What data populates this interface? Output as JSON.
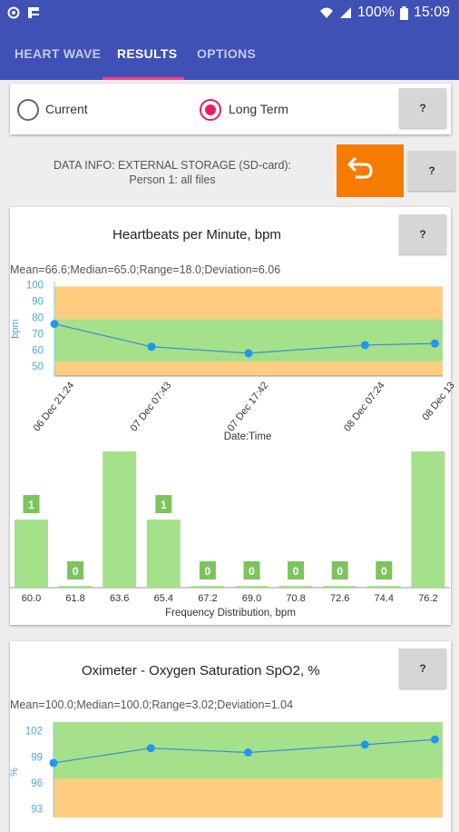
{
  "status": {
    "battery": "100%",
    "time": "15:09"
  },
  "tabs": [
    {
      "label": "HEART WAVE"
    },
    {
      "label": "RESULTS"
    },
    {
      "label": "OPTIONS"
    }
  ],
  "mode": {
    "current_label": "Current",
    "longterm_label": "Long Term",
    "selected": "Long Term",
    "help_label": "?"
  },
  "info": {
    "line1": "DATA INFO: EXTERNAL STORAGE (SD-card):",
    "line2": "Person 1: all files",
    "help_label": "?"
  },
  "heart": {
    "title": "Heartbeats per Minute, bpm",
    "help_label": "?",
    "stats": "Mean=66.6;Median=65.0;Range=18.0;Deviation=6.06",
    "chart_data": {
      "type": "line",
      "ylabel": "bpm",
      "xlabel": "Date:Time",
      "ylim": [
        44,
        102
      ],
      "yticks": [
        "100",
        "90",
        "80",
        "70",
        "60",
        "50"
      ],
      "bands": [
        {
          "from": 44,
          "to": 53,
          "color": "#ffcc80"
        },
        {
          "from": 53,
          "to": 79,
          "color": "#a5e08a"
        },
        {
          "from": 79,
          "to": 99,
          "color": "#ffcc80"
        }
      ],
      "x_labels": [
        "06 Dec 21:24",
        "07 Dec 07:43",
        "07 Dec 17:42",
        "08 Dec 07:24",
        "08 Dec 13"
      ],
      "x_label_pos": [
        0,
        0.25,
        0.5,
        0.8,
        0.98
      ],
      "points": [
        {
          "x": 0,
          "y": 76
        },
        {
          "x": 0.25,
          "y": 62
        },
        {
          "x": 0.5,
          "y": 58
        },
        {
          "x": 0.8,
          "y": 63
        },
        {
          "x": 0.98,
          "y": 64
        }
      ]
    },
    "histogram": {
      "type": "bar",
      "xlabel": "Frequency Distribution, bpm",
      "ymax": 2,
      "categories": [
        "60.0",
        "61.8",
        "63.6",
        "65.4",
        "67.2",
        "69.0",
        "70.8",
        "72.6",
        "74.4",
        "76.2"
      ],
      "values": [
        1,
        0,
        2,
        1,
        0,
        0,
        0,
        0,
        0,
        2
      ]
    }
  },
  "oxi": {
    "title": "Oximeter - Oxygen Saturation SpO2, %",
    "help_label": "?",
    "stats": "Mean=100.0;Median=100.0;Range=3.02;Deviation=1.04",
    "chart_data": {
      "type": "line",
      "ylabel": "%",
      "ylim": [
        91.5,
        103
      ],
      "yticks": [
        "102",
        "99",
        "96",
        "93"
      ],
      "bands": [
        {
          "from": 91.5,
          "to": 96.5,
          "color": "#ffcc80"
        },
        {
          "from": 96.5,
          "to": 103,
          "color": "#a5e08a"
        }
      ],
      "points": [
        {
          "x": 0,
          "y": 98.3
        },
        {
          "x": 0.25,
          "y": 100.0
        },
        {
          "x": 0.5,
          "y": 99.5
        },
        {
          "x": 0.8,
          "y": 100.4
        },
        {
          "x": 0.98,
          "y": 101.0
        }
      ]
    }
  }
}
